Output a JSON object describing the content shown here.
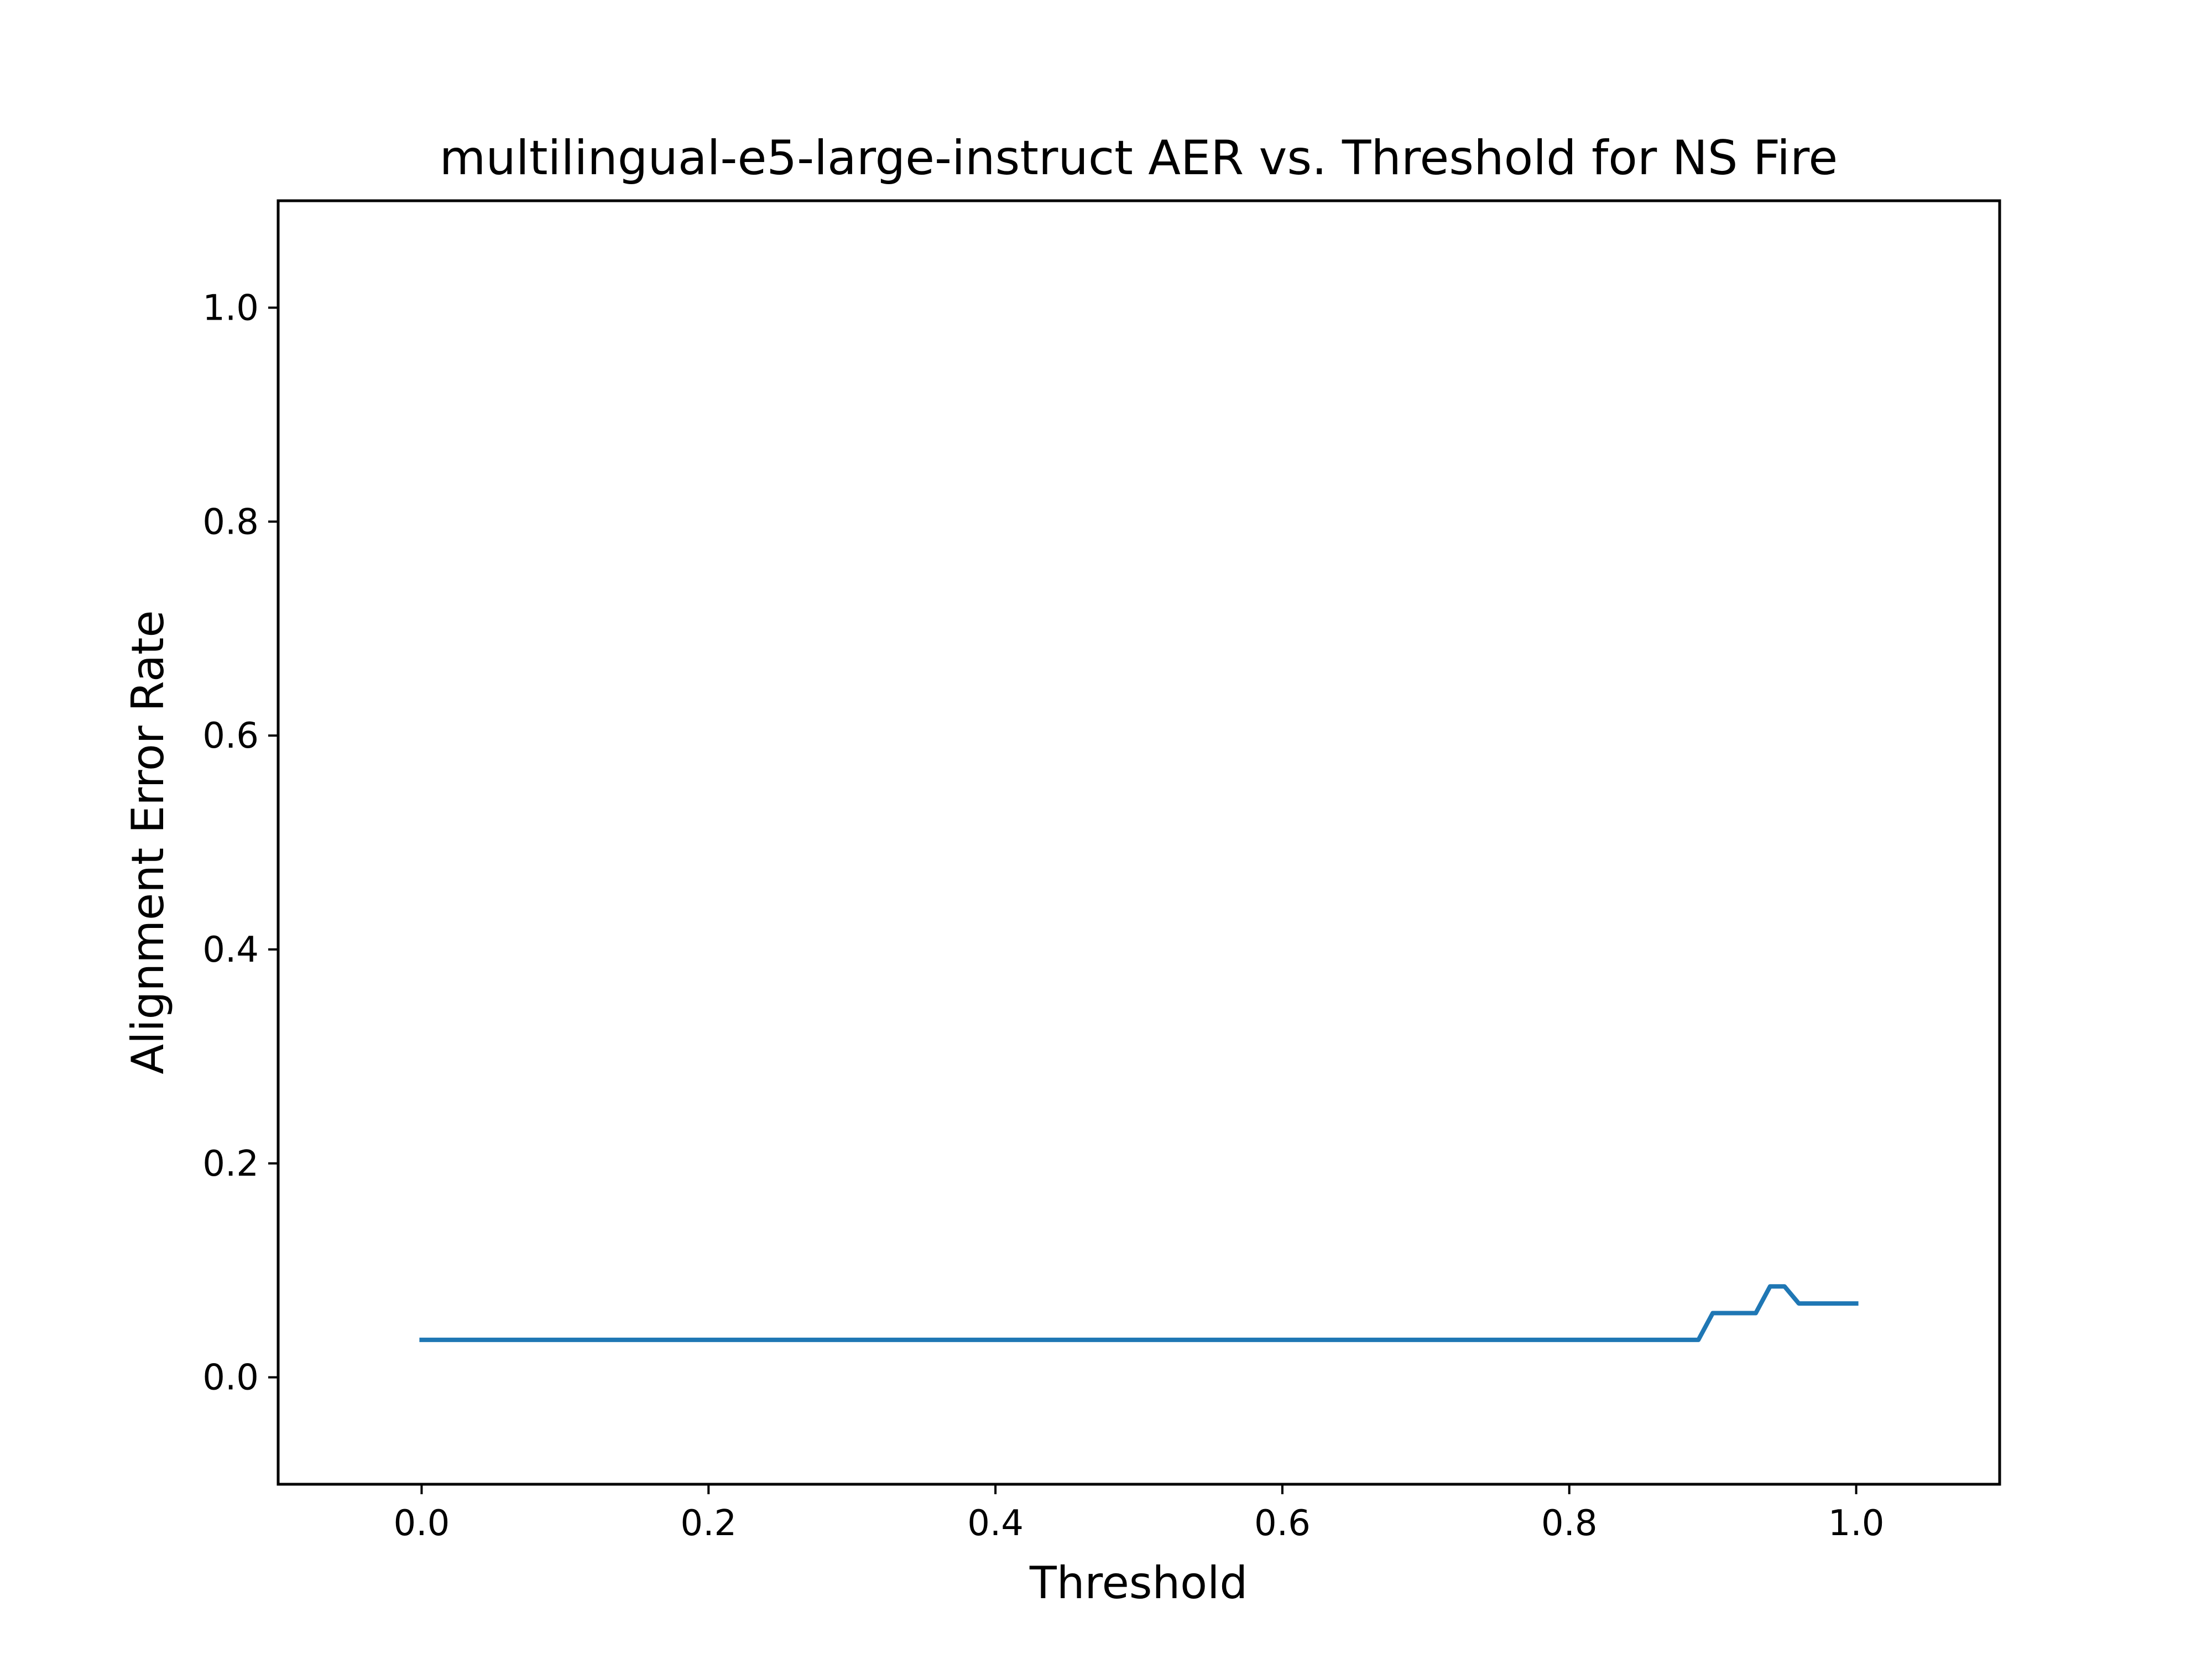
{
  "chart_data": {
    "type": "line",
    "title": "multilingual-e5-large-instruct AER vs. Threshold for NS Fire",
    "xlabel": "Threshold",
    "ylabel": "Alignment Error Rate",
    "xlim": [
      -0.1,
      1.1
    ],
    "ylim": [
      -0.1,
      1.1
    ],
    "xticks": [
      0.0,
      0.2,
      0.4,
      0.6,
      0.8,
      1.0
    ],
    "xtick_labels": [
      "0.0",
      "0.2",
      "0.4",
      "0.6",
      "0.8",
      "1.0"
    ],
    "yticks": [
      0.0,
      0.2,
      0.4,
      0.6,
      0.8,
      1.0
    ],
    "ytick_labels": [
      "0.0",
      "0.2",
      "0.4",
      "0.6",
      "0.8",
      "1.0"
    ],
    "grid": false,
    "series": [
      {
        "color": "#1f77b4",
        "x": [
          0.0,
          0.89,
          0.9,
          0.93,
          0.94,
          0.95,
          0.96,
          1.0
        ],
        "y": [
          0.035,
          0.035,
          0.06,
          0.06,
          0.085,
          0.085,
          0.069,
          0.069
        ]
      }
    ]
  }
}
